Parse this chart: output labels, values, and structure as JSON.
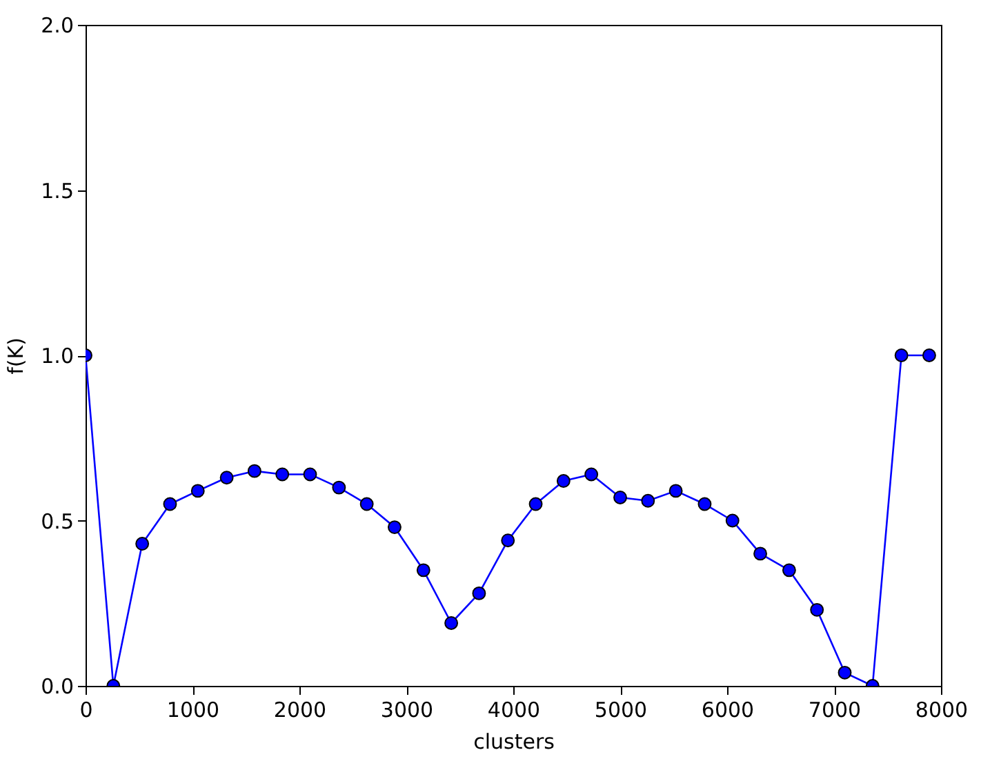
{
  "chart_data": {
    "type": "line",
    "xlabel": "clusters",
    "ylabel": "f(K)",
    "x": [
      0,
      260,
      530,
      790,
      1050,
      1320,
      1580,
      1840,
      2100,
      2370,
      2630,
      2890,
      3160,
      3420,
      3680,
      3950,
      4210,
      4470,
      4730,
      5000,
      5260,
      5520,
      5790,
      6050,
      6310,
      6580,
      6840,
      7100,
      7360,
      7630,
      7890
    ],
    "series": [
      {
        "color": "#0000ff",
        "values": [
          1.0,
          0.0,
          0.43,
          0.55,
          0.59,
          0.63,
          0.65,
          0.64,
          0.64,
          0.6,
          0.55,
          0.48,
          0.35,
          0.19,
          0.28,
          0.44,
          0.55,
          0.62,
          0.64,
          0.57,
          0.56,
          0.59,
          0.55,
          0.5,
          0.4,
          0.35,
          0.23,
          0.04,
          0.0,
          1.0,
          1.0
        ]
      }
    ],
    "xlim": [
      0,
      8000
    ],
    "ylim": [
      0,
      2
    ],
    "xticks": [
      0,
      1000,
      2000,
      3000,
      4000,
      5000,
      6000,
      7000,
      8000
    ],
    "yticks": [
      {
        "value": 0,
        "label": "0.0"
      },
      0.5,
      {
        "value": 1,
        "label": "1.0"
      },
      1.5,
      {
        "value": 2,
        "label": "2.0"
      }
    ],
    "marker": "circle",
    "line_style": "solid"
  }
}
